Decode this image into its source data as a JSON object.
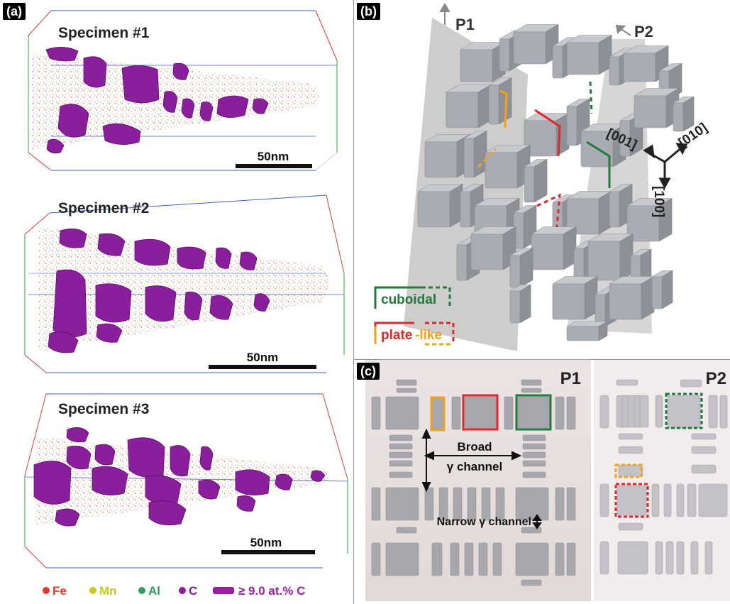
{
  "panel_a": {
    "label": "(a)",
    "specimens": [
      {
        "title": "Specimen #1",
        "scale": "50nm"
      },
      {
        "title": "Specimen #2",
        "scale": "50nm"
      },
      {
        "title": "Specimen #3",
        "scale": "50nm"
      }
    ],
    "legend": [
      {
        "label": "Fe",
        "color": "#e8342c"
      },
      {
        "label": "Mn",
        "color": "#c8c81e"
      },
      {
        "label": "Al",
        "color": "#2e9e5a"
      },
      {
        "label": "C",
        "color": "#8e1a9a"
      }
    ],
    "iso_label": "≥ 9.0 at.% C",
    "iso_color": "#9b1fa0"
  },
  "panel_b": {
    "label": "(b)",
    "plane1": "P1",
    "plane2": "P2",
    "axis_001": "[001]",
    "axis_010": "[010]",
    "axis_100": "[100]",
    "legend_cuboidal": "cuboidal",
    "legend_plate": "plate",
    "legend_like": "-like",
    "colors": {
      "green": "#1f7a3d",
      "red": "#e0252b",
      "orange": "#f0a21a"
    }
  },
  "panel_c": {
    "label": "(c)",
    "p1": "P1",
    "p2": "P2",
    "broad_1": "Broad",
    "broad_2": "γ channel",
    "narrow": "Narrow γ channel"
  }
}
